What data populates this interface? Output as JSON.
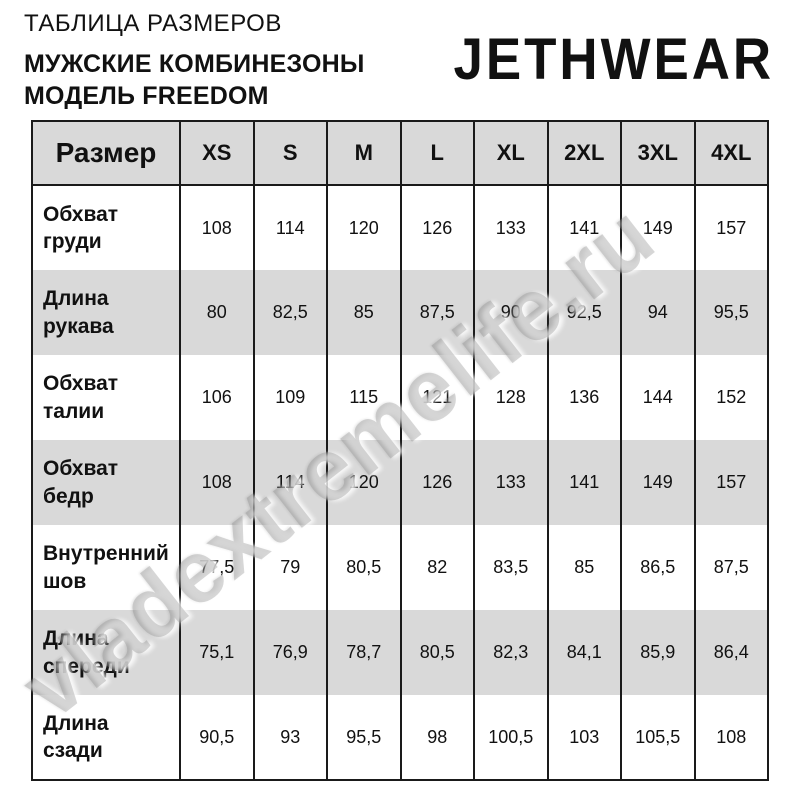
{
  "header": {
    "title": "ТАБЛИЦА РАЗМЕРОВ",
    "subtitle_line1": "МУЖСКИЕ КОМБИНЕЗОНЫ",
    "subtitle_line2": "МОДЕЛЬ FREEDOM",
    "brand": "JETHWEAR"
  },
  "watermark": {
    "text": "vladextremelife.ru"
  },
  "colors": {
    "row_alt_bg": "#d9d9d9",
    "header_bg": "#d9d9d9",
    "border": "#1a1a1a",
    "text": "#111111"
  },
  "chart_data": {
    "type": "table",
    "columns": [
      "Размер",
      "XS",
      "S",
      "M",
      "L",
      "XL",
      "2XL",
      "3XL",
      "4XL"
    ],
    "rows": [
      {
        "label": "Обхват груди",
        "values": [
          "108",
          "114",
          "120",
          "126",
          "133",
          "141",
          "149",
          "157"
        ]
      },
      {
        "label": "Длина рукава",
        "values": [
          "80",
          "82,5",
          "85",
          "87,5",
          "90",
          "92,5",
          "94",
          "95,5"
        ]
      },
      {
        "label": "Обхват талии",
        "values": [
          "106",
          "109",
          "115",
          "121",
          "128",
          "136",
          "144",
          "152"
        ]
      },
      {
        "label": "Обхват бедр",
        "values": [
          "108",
          "114",
          "120",
          "126",
          "133",
          "141",
          "149",
          "157"
        ]
      },
      {
        "label": "Внутренний шов",
        "values": [
          "77,5",
          "79",
          "80,5",
          "82",
          "83,5",
          "85",
          "86,5",
          "87,5"
        ]
      },
      {
        "label": "Длина спереди",
        "values": [
          "75,1",
          "76,9",
          "78,7",
          "80,5",
          "82,3",
          "84,1",
          "85,9",
          "86,4"
        ]
      },
      {
        "label": "Длина сзади",
        "values": [
          "90,5",
          "93",
          "95,5",
          "98",
          "100,5",
          "103",
          "105,5",
          "108"
        ]
      }
    ]
  }
}
